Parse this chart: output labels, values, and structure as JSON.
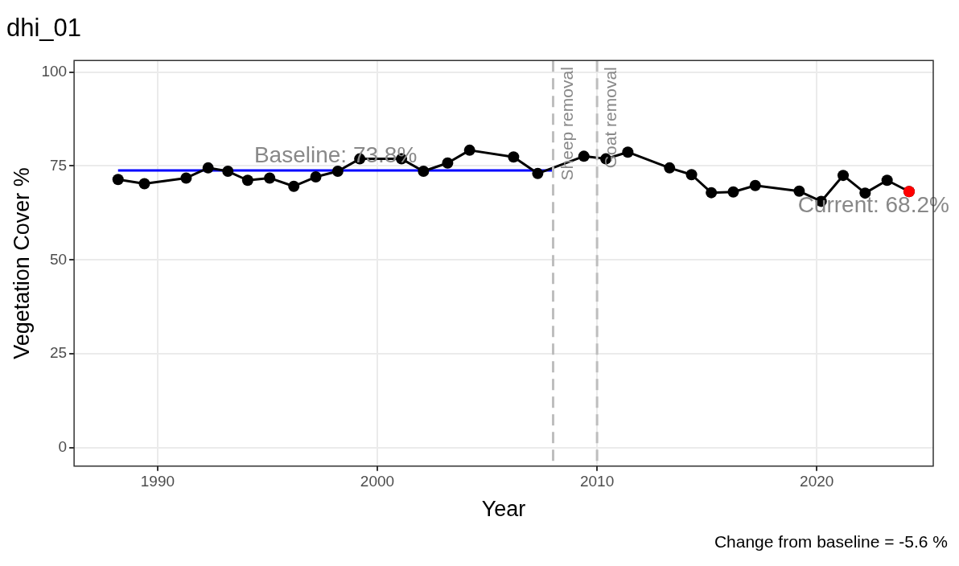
{
  "chart_data": {
    "type": "line",
    "title": "dhi_01",
    "xlabel": "Year",
    "ylabel": "Vegetation Cover %",
    "xlim": [
      1986.2,
      2025.3
    ],
    "xticks": [
      1990,
      2000,
      2010,
      2020
    ],
    "ylim": [
      -4.9,
      103.1
    ],
    "yticks": [
      0,
      25,
      50,
      75,
      100
    ],
    "grid": true,
    "legend": false,
    "series": [
      {
        "type": "line",
        "color": "#0000ff",
        "marker": "none",
        "x": [
          1988.2,
          2008.0
        ],
        "values": [
          73.8,
          73.8
        ]
      },
      {
        "type": "line",
        "color": "#000000",
        "marker": "circle",
        "x": [
          1988.2,
          1989.4,
          1991.3,
          1992.3,
          1993.2,
          1994.1,
          1995.1,
          1996.2,
          1997.2,
          1998.2,
          1999.2,
          2001.1,
          2002.1,
          2003.2,
          2004.2,
          2006.2,
          2007.3,
          2009.4,
          2010.4,
          2011.4,
          2013.3,
          2014.3,
          2015.2,
          2016.2,
          2017.2,
          2019.2,
          2020.2,
          2021.2,
          2022.2,
          2023.2,
          2024.2
        ],
        "values": [
          71.4,
          70.3,
          71.8,
          74.5,
          73.6,
          71.2,
          71.8,
          69.6,
          72.1,
          73.6,
          76.9,
          76.9,
          73.6,
          75.8,
          79.2,
          77.4,
          73.0,
          77.6,
          76.9,
          78.7,
          74.5,
          72.7,
          67.9,
          68.1,
          69.8,
          68.3,
          65.6,
          72.5,
          67.8,
          71.2,
          68.2
        ]
      },
      {
        "type": "scatter",
        "color": "#ff0000",
        "marker": "circle",
        "x": [
          2024.2
        ],
        "values": [
          68.2
        ]
      }
    ],
    "ref_lines": [
      {
        "axis": "x",
        "value": 2008,
        "label": "Sheep removal",
        "color": "#bebebe",
        "line_style": "dashed"
      },
      {
        "axis": "x",
        "value": 2010,
        "label": "Goat removal",
        "color": "#bebebe",
        "line_style": "dashed"
      }
    ],
    "annotations": [
      {
        "text": "Baseline: 73.8%",
        "x": 1998.1,
        "y": 73.8
      },
      {
        "text": "Current: 68.2%",
        "x": 2024.2,
        "y": 68.2
      },
      "Change from baseline = -5.6 %"
    ]
  }
}
